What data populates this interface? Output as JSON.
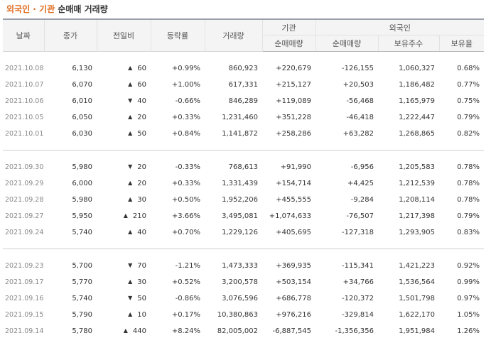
{
  "title": {
    "accent": "외국인 · 기관",
    "rest": "순매매 거래량"
  },
  "colors": {
    "up": "#d5001f",
    "down": "#1a62c5",
    "accent": "#e06a1b"
  },
  "icons": {
    "up": "triangle-up-icon",
    "down": "triangle-down-icon"
  },
  "headers": {
    "date": "날짜",
    "close": "종가",
    "change": "전일비",
    "rate": "등락률",
    "volume": "거래량",
    "institution": "기관",
    "foreign": "외국인",
    "inst_net": "순매매량",
    "for_net": "순매매량",
    "for_hold": "보유주수",
    "for_ratio": "보유율"
  },
  "groups": [
    [
      {
        "date": "2021.10.08",
        "close": "6,130",
        "dir": "up",
        "change": "60",
        "rate": "+0.99%",
        "volume": "860,923",
        "inst": "+220,679",
        "fnet": "-126,155",
        "hold": "1,060,327",
        "ratio": "0.68%"
      },
      {
        "date": "2021.10.07",
        "close": "6,070",
        "dir": "up",
        "change": "60",
        "rate": "+1.00%",
        "volume": "617,331",
        "inst": "+215,127",
        "fnet": "+20,503",
        "hold": "1,186,482",
        "ratio": "0.77%"
      },
      {
        "date": "2021.10.06",
        "close": "6,010",
        "dir": "down",
        "change": "40",
        "rate": "-0.66%",
        "volume": "846,289",
        "inst": "+119,089",
        "fnet": "-56,468",
        "hold": "1,165,979",
        "ratio": "0.75%"
      },
      {
        "date": "2021.10.05",
        "close": "6,050",
        "dir": "up",
        "change": "20",
        "rate": "+0.33%",
        "volume": "1,231,460",
        "inst": "+351,228",
        "fnet": "-46,418",
        "hold": "1,222,447",
        "ratio": "0.79%"
      },
      {
        "date": "2021.10.01",
        "close": "6,030",
        "dir": "up",
        "change": "50",
        "rate": "+0.84%",
        "volume": "1,141,872",
        "inst": "+258,286",
        "fnet": "+63,282",
        "hold": "1,268,865",
        "ratio": "0.82%"
      }
    ],
    [
      {
        "date": "2021.09.30",
        "close": "5,980",
        "dir": "down",
        "change": "20",
        "rate": "-0.33%",
        "volume": "768,613",
        "inst": "+91,990",
        "fnet": "-6,956",
        "hold": "1,205,583",
        "ratio": "0.78%"
      },
      {
        "date": "2021.09.29",
        "close": "6,000",
        "dir": "up",
        "change": "20",
        "rate": "+0.33%",
        "volume": "1,331,439",
        "inst": "+154,714",
        "fnet": "+4,425",
        "hold": "1,212,539",
        "ratio": "0.78%"
      },
      {
        "date": "2021.09.28",
        "close": "5,980",
        "dir": "up",
        "change": "30",
        "rate": "+0.50%",
        "volume": "1,952,206",
        "inst": "+455,555",
        "fnet": "-9,284",
        "hold": "1,208,114",
        "ratio": "0.78%"
      },
      {
        "date": "2021.09.27",
        "close": "5,950",
        "dir": "up",
        "change": "210",
        "rate": "+3.66%",
        "volume": "3,495,081",
        "inst": "+1,074,633",
        "fnet": "-76,507",
        "hold": "1,217,398",
        "ratio": "0.79%"
      },
      {
        "date": "2021.09.24",
        "close": "5,740",
        "dir": "up",
        "change": "40",
        "rate": "+0.70%",
        "volume": "1,229,126",
        "inst": "+405,695",
        "fnet": "-127,318",
        "hold": "1,293,905",
        "ratio": "0.83%"
      }
    ],
    [
      {
        "date": "2021.09.23",
        "close": "5,700",
        "dir": "down",
        "change": "70",
        "rate": "-1.21%",
        "volume": "1,473,333",
        "inst": "+369,935",
        "fnet": "-115,341",
        "hold": "1,421,223",
        "ratio": "0.92%"
      },
      {
        "date": "2021.09.17",
        "close": "5,770",
        "dir": "up",
        "change": "30",
        "rate": "+0.52%",
        "volume": "3,200,578",
        "inst": "+503,154",
        "fnet": "+34,766",
        "hold": "1,536,564",
        "ratio": "0.99%"
      },
      {
        "date": "2021.09.16",
        "close": "5,740",
        "dir": "down",
        "change": "50",
        "rate": "-0.86%",
        "volume": "3,076,596",
        "inst": "+686,778",
        "fnet": "-120,372",
        "hold": "1,501,798",
        "ratio": "0.97%"
      },
      {
        "date": "2021.09.15",
        "close": "5,790",
        "dir": "up",
        "change": "10",
        "rate": "+0.17%",
        "volume": "10,380,863",
        "inst": "+976,216",
        "fnet": "-329,814",
        "hold": "1,622,170",
        "ratio": "1.05%"
      },
      {
        "date": "2021.09.14",
        "close": "5,780",
        "dir": "up",
        "change": "440",
        "rate": "+8.24%",
        "volume": "82,005,002",
        "inst": "-6,887,545",
        "fnet": "-1,356,356",
        "hold": "1,951,984",
        "ratio": "1.26%"
      }
    ]
  ]
}
